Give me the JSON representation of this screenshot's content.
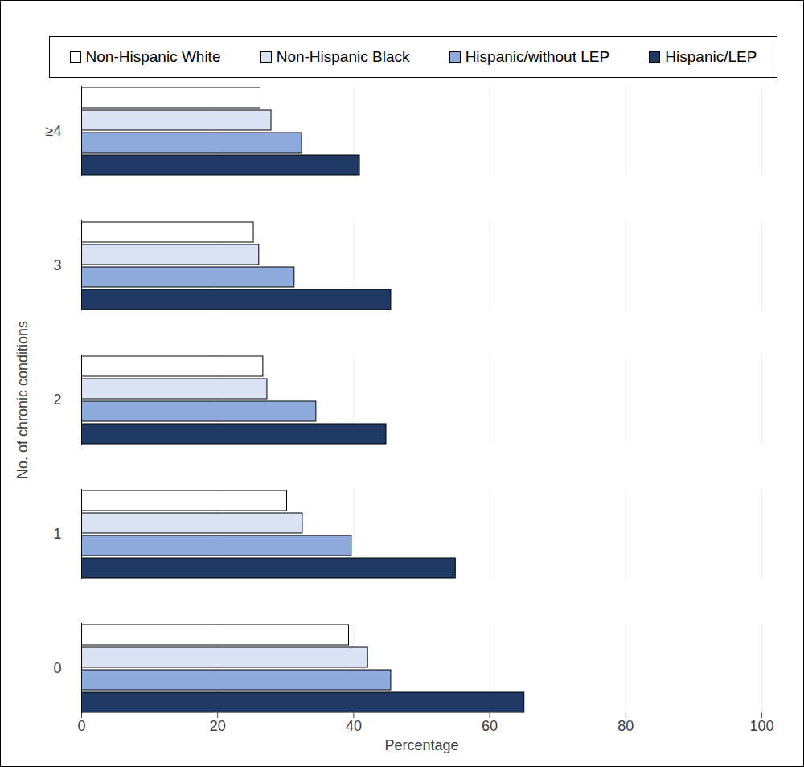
{
  "chart_data": {
    "type": "bar",
    "orientation": "horizontal",
    "categories": [
      "≥4",
      "3",
      "2",
      "1",
      "0"
    ],
    "series": [
      {
        "name": "Non-Hispanic White",
        "color": "#ffffff",
        "values": [
          26.3,
          25.3,
          26.7,
          30.2,
          39.3
        ]
      },
      {
        "name": "Non-Hispanic Black",
        "color": "#dae3f3",
        "values": [
          27.9,
          26.1,
          27.3,
          32.5,
          42.1
        ]
      },
      {
        "name": "Hispanic/without LEP",
        "color": "#8faadc",
        "values": [
          32.4,
          31.3,
          34.5,
          39.7,
          45.5
        ]
      },
      {
        "name": "Hispanic/LEP",
        "color": "#203864",
        "values": [
          40.9,
          45.5,
          44.8,
          55.0,
          65.1
        ]
      }
    ],
    "xlabel": "Percentage",
    "ylabel": "No. of chronic conditions",
    "xlim": [
      0,
      100
    ],
    "xticks": [
      0,
      20,
      40,
      60,
      80,
      100
    ],
    "grid": true,
    "legend": "top"
  }
}
